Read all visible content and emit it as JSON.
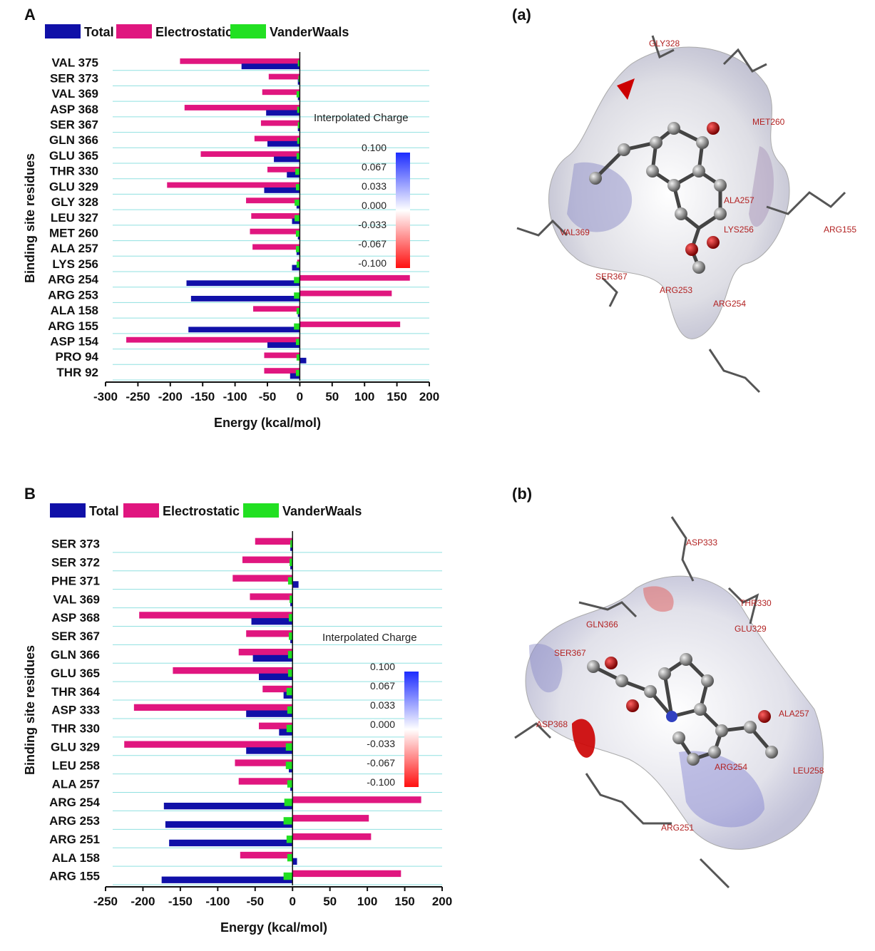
{
  "panels": {
    "A": "A",
    "B": "B",
    "a": "(a)",
    "b": "(b)"
  },
  "colors": {
    "total": "#1010a8",
    "electrostatic": "#e0167f",
    "vdw": "#22e022",
    "gridline": "#8fe0e0",
    "charge_pos": "#1c2cff",
    "charge_neg": "#ff1010"
  },
  "legend": {
    "total": "Total",
    "electrostatic": "Electrostatic",
    "vdw": "VanderWaals"
  },
  "charge_legend": {
    "title": "Interpolated Charge",
    "ticks": [
      "0.100",
      "0.067",
      "0.033",
      "0.000",
      "-0.033",
      "-0.067",
      "-0.100"
    ]
  },
  "chart_data": [
    {
      "type": "bar",
      "orientation": "horizontal",
      "panel": "A",
      "title": "",
      "xlabel": "Energy (kcal/mol)",
      "ylabel": "Binding site residues",
      "xlim": [
        -300,
        200
      ],
      "xticks": [
        -300,
        -250,
        -200,
        -150,
        -100,
        -50,
        0,
        50,
        100,
        150,
        200
      ],
      "categories": [
        "VAL 375",
        "SER 373",
        "VAL 369",
        "ASP 368",
        "SER 367",
        "GLN 366",
        "GLU 365",
        "THR 330",
        "GLU 329",
        "GLY 328",
        "LEU 327",
        "MET 260",
        "ALA 257",
        "LYS 256",
        "ARG 254",
        "ARG 253",
        "ALA 158",
        "ARG 155",
        "ASP 154",
        "PRO 94",
        "THR 92"
      ],
      "series": [
        {
          "name": "Total",
          "values": [
            -90,
            -3,
            -3,
            -52,
            -3,
            -50,
            -40,
            -20,
            -55,
            -5,
            -12,
            -3,
            -5,
            -12,
            -175,
            -168,
            -3,
            -172,
            -50,
            10,
            -15
          ]
        },
        {
          "name": "Electrostatic",
          "values": [
            -185,
            -48,
            -58,
            -178,
            -60,
            -70,
            -153,
            -50,
            -205,
            -83,
            -75,
            -77,
            -73,
            -4,
            170,
            142,
            -72,
            155,
            -268,
            -55,
            -55
          ]
        },
        {
          "name": "VanderWaals",
          "values": [
            -3,
            -2,
            -5,
            -4,
            -3,
            -4,
            -5,
            -7,
            -6,
            -8,
            -8,
            -6,
            -6,
            -5,
            -9,
            -9,
            -5,
            -9,
            -6,
            -5,
            -6
          ]
        }
      ]
    },
    {
      "type": "bar",
      "orientation": "horizontal",
      "panel": "B",
      "title": "",
      "xlabel": "Energy (kcal/mol)",
      "ylabel": "Binding site residues",
      "xlim": [
        -250,
        200
      ],
      "xticks": [
        -250,
        -200,
        -150,
        -100,
        -50,
        0,
        50,
        100,
        150,
        200
      ],
      "categories": [
        "SER 373",
        "SER 372",
        "PHE 371",
        "VAL 369",
        "ASP 368",
        "SER 367",
        "GLN 366",
        "GLU 365",
        "THR 364",
        "ASP 333",
        "THR 330",
        "GLU 329",
        "LEU 258",
        "ALA 257",
        "ARG 254",
        "ARG 253",
        "ARG 251",
        "ALA 158",
        "ARG 155"
      ],
      "series": [
        {
          "name": "Total",
          "values": [
            -3,
            -3,
            8,
            -3,
            -55,
            -3,
            -53,
            -45,
            -12,
            -62,
            -18,
            -62,
            -5,
            -3,
            -172,
            -170,
            -165,
            6,
            -175
          ]
        },
        {
          "name": "Electrostatic",
          "values": [
            -50,
            -67,
            -80,
            -57,
            -205,
            -62,
            -72,
            -160,
            -40,
            -212,
            -45,
            -225,
            -77,
            -72,
            172,
            102,
            105,
            -70,
            145
          ]
        },
        {
          "name": "VanderWaals",
          "values": [
            -3,
            -4,
            -6,
            -4,
            -5,
            -5,
            -6,
            -6,
            -8,
            -7,
            -8,
            -9,
            -9,
            -7,
            -11,
            -12,
            -8,
            -7,
            -12
          ]
        }
      ]
    }
  ],
  "mol_a": {
    "labels": [
      "GLY328",
      "MET260",
      "ALA257",
      "ARG155",
      "VAL369",
      "SER367",
      "ARG253",
      "ARG254",
      "LYS256"
    ]
  },
  "mol_b": {
    "labels": [
      "ASP333",
      "THR330",
      "GLU329",
      "GLN366",
      "SER367",
      "ALA257",
      "ASP368",
      "ARG254",
      "LEU258",
      "ARG251"
    ]
  }
}
